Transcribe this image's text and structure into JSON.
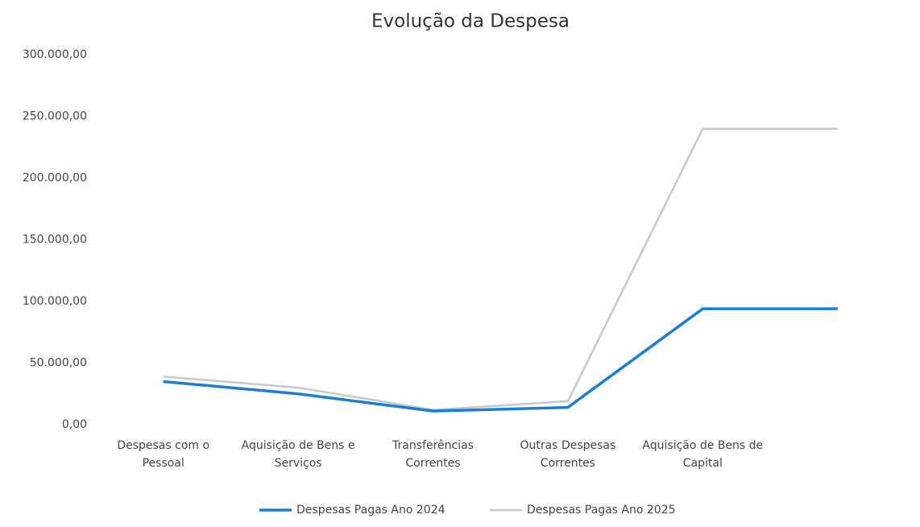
{
  "chart_data": {
    "type": "line",
    "title": "Evolução da Despesa",
    "categories": [
      "Despesas com o Pessoal",
      "Aquisição de Bens e Serviços",
      "Transferências Correntes",
      "Outras Despesas Correntes",
      "Aquisição de Bens de Capital",
      null
    ],
    "series": [
      {
        "name": "Despesas Pagas Ano 2024",
        "color": "#1a7fd4",
        "values": [
          35000,
          25000,
          11000,
          14000,
          94000,
          94000
        ]
      },
      {
        "name": "Despesas Pagas Ano 2025",
        "color": "#c8c8cc",
        "values": [
          39000,
          30000,
          12000,
          19000,
          240000,
          240000
        ]
      }
    ],
    "ylim": [
      0,
      300000
    ],
    "yticks": [
      {
        "value": 0,
        "label": "0,00"
      },
      {
        "value": 50000,
        "label": "50.000,00"
      },
      {
        "value": 100000,
        "label": "100.000,00"
      },
      {
        "value": 150000,
        "label": "150.000,00"
      },
      {
        "value": 200000,
        "label": "200.000,00"
      },
      {
        "value": 250000,
        "label": "250.000,00"
      },
      {
        "value": 300000,
        "label": "300.000,00"
      }
    ],
    "grid": false,
    "legend": "bottom"
  }
}
